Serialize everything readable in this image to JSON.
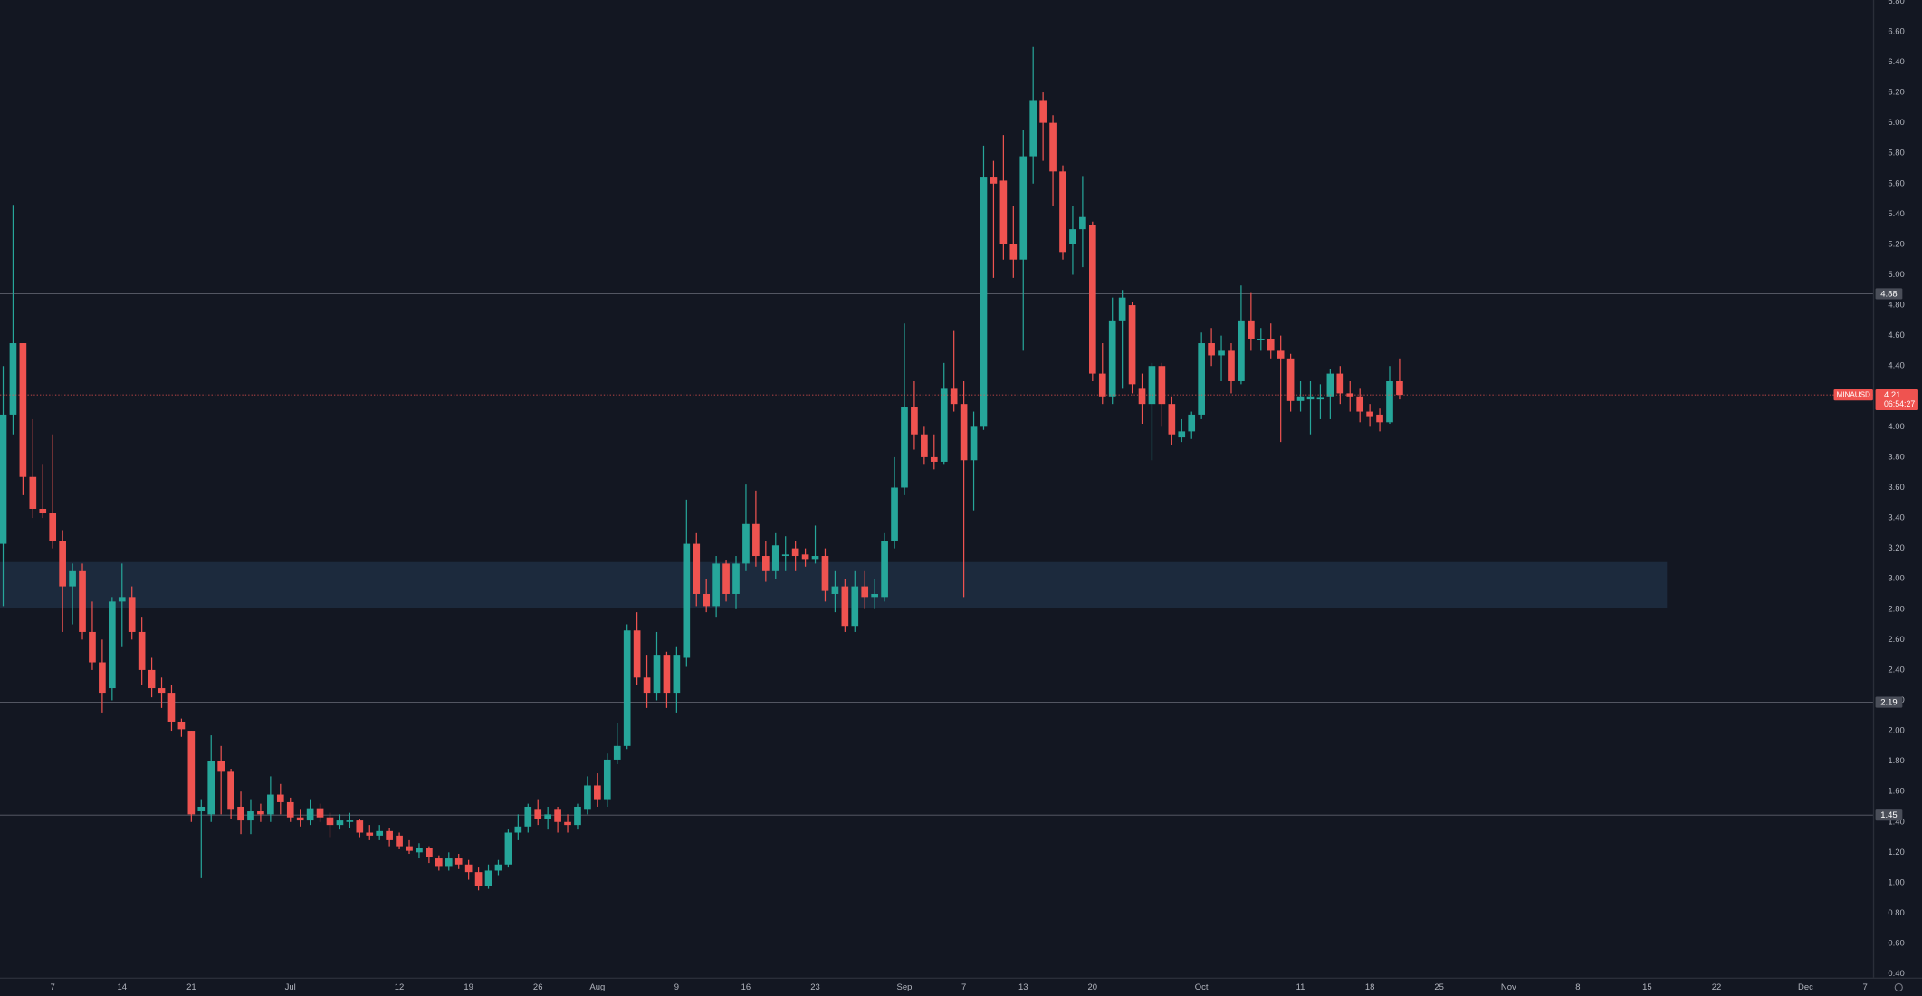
{
  "chart_data": {
    "type": "candlestick",
    "symbol": "MINAUSD",
    "up_color": "#26a69a",
    "down_color": "#ef5350",
    "background": "#131722",
    "x": [
      1,
      2,
      3,
      4,
      5,
      6,
      7,
      8,
      9,
      10,
      11,
      12,
      13,
      14,
      15,
      16,
      17,
      18,
      19,
      20,
      21,
      22,
      23,
      24,
      25,
      26,
      27,
      28,
      29,
      30,
      31,
      32,
      33,
      34,
      35,
      36,
      37,
      38,
      39,
      40,
      41,
      42,
      43,
      44,
      45,
      46,
      47,
      48,
      49,
      50,
      51,
      52,
      53,
      54,
      55,
      56,
      57,
      58,
      59,
      60,
      61,
      62,
      63,
      64,
      65,
      66,
      67,
      68,
      69,
      70,
      71,
      72,
      73,
      74,
      75,
      76,
      77,
      78,
      79,
      80,
      81,
      82,
      83,
      84,
      85,
      86,
      87,
      88,
      89,
      90,
      91,
      92,
      93,
      94,
      95,
      96,
      97,
      98,
      99,
      100,
      101,
      102,
      103,
      104,
      105,
      106,
      107,
      108,
      109,
      110,
      111,
      112,
      113,
      114,
      115,
      116,
      117,
      118,
      119,
      120,
      121,
      122,
      123,
      124,
      125,
      126,
      127,
      128,
      129,
      130,
      131,
      132,
      133,
      134,
      135,
      136,
      137,
      138,
      139,
      140,
      141,
      142
    ],
    "open": [
      3.23,
      4.08,
      4.55,
      3.67,
      3.46,
      3.43,
      3.25,
      2.95,
      3.05,
      2.65,
      2.45,
      2.28,
      2.85,
      2.88,
      2.65,
      2.4,
      2.28,
      2.25,
      2.06,
      2.0,
      1.47,
      1.45,
      1.8,
      1.73,
      1.5,
      1.41,
      1.47,
      1.45,
      1.58,
      1.53,
      1.43,
      1.41,
      1.49,
      1.43,
      1.38,
      1.4,
      1.41,
      1.33,
      1.31,
      1.34,
      1.31,
      1.24,
      1.2,
      1.23,
      1.16,
      1.11,
      1.16,
      1.12,
      1.07,
      0.98,
      1.08,
      1.12,
      1.33,
      1.37,
      1.48,
      1.42,
      1.48,
      1.4,
      1.38,
      1.48,
      1.64,
      1.55,
      1.81,
      1.9,
      2.66,
      2.35,
      2.25,
      2.5,
      2.25,
      2.48,
      3.23,
      2.9,
      2.82,
      3.1,
      2.9,
      3.1,
      3.36,
      3.15,
      3.05,
      3.15,
      3.2,
      3.16,
      3.13,
      3.15,
      2.9,
      2.95,
      2.69,
      2.95,
      2.88,
      2.88,
      3.25,
      3.6,
      4.13,
      3.95,
      3.8,
      3.77,
      4.25,
      4.15,
      3.78,
      4.0,
      5.64,
      5.62,
      5.2,
      5.1,
      5.78,
      6.15,
      6.0,
      5.68,
      5.2,
      5.3,
      5.33,
      4.35,
      4.2,
      4.7,
      4.8,
      4.25,
      4.15,
      4.4,
      4.15,
      3.93,
      3.97,
      4.08,
      4.55,
      4.47,
      4.5,
      4.3,
      4.7,
      4.57,
      4.58,
      4.5,
      4.45,
      4.17,
      4.18,
      4.18,
      4.2,
      4.35,
      4.22,
      4.2,
      4.1,
      4.08,
      4.03,
      4.3
    ],
    "high": [
      4.4,
      5.46,
      4.55,
      4.05,
      3.75,
      3.95,
      3.32,
      3.1,
      3.1,
      2.85,
      2.6,
      2.88,
      3.1,
      2.95,
      2.75,
      2.48,
      2.35,
      2.3,
      2.08,
      2.0,
      1.55,
      1.97,
      1.9,
      1.75,
      1.6,
      1.55,
      1.52,
      1.7,
      1.65,
      1.56,
      1.48,
      1.55,
      1.52,
      1.46,
      1.45,
      1.46,
      1.42,
      1.38,
      1.38,
      1.36,
      1.33,
      1.28,
      1.26,
      1.24,
      1.18,
      1.2,
      1.19,
      1.15,
      1.1,
      1.12,
      1.15,
      1.35,
      1.45,
      1.52,
      1.55,
      1.5,
      1.5,
      1.45,
      1.52,
      1.7,
      1.72,
      1.85,
      2.05,
      2.7,
      2.78,
      2.5,
      2.65,
      2.52,
      2.55,
      3.52,
      3.3,
      3.0,
      3.15,
      3.12,
      3.15,
      3.62,
      3.58,
      3.25,
      3.3,
      3.28,
      3.25,
      3.2,
      3.35,
      3.2,
      3.05,
      3.0,
      3.05,
      3.05,
      3.0,
      3.3,
      3.8,
      4.68,
      4.3,
      4.0,
      3.95,
      4.42,
      4.63,
      4.3,
      4.1,
      5.85,
      5.75,
      5.92,
      5.45,
      5.95,
      6.5,
      6.2,
      6.05,
      5.72,
      5.45,
      5.65,
      5.35,
      4.55,
      4.85,
      4.9,
      4.82,
      4.35,
      4.42,
      4.42,
      4.2,
      4.05,
      4.1,
      4.62,
      4.65,
      4.6,
      4.55,
      4.93,
      4.88,
      4.65,
      4.68,
      4.6,
      4.48,
      4.3,
      4.3,
      4.28,
      4.38,
      4.4,
      4.3,
      4.25,
      4.15,
      4.12,
      4.4,
      4.45
    ],
    "low": [
      2.82,
      3.95,
      3.55,
      3.4,
      3.4,
      3.2,
      2.65,
      2.7,
      2.6,
      2.4,
      2.12,
      2.2,
      2.55,
      2.6,
      2.3,
      2.22,
      2.15,
      2.0,
      1.96,
      1.4,
      1.03,
      1.4,
      1.45,
      1.42,
      1.32,
      1.32,
      1.4,
      1.4,
      1.45,
      1.4,
      1.37,
      1.38,
      1.4,
      1.3,
      1.35,
      1.36,
      1.3,
      1.28,
      1.28,
      1.24,
      1.22,
      1.19,
      1.16,
      1.13,
      1.08,
      1.08,
      1.09,
      1.02,
      0.95,
      0.96,
      1.05,
      1.1,
      1.28,
      1.33,
      1.38,
      1.35,
      1.33,
      1.33,
      1.35,
      1.45,
      1.5,
      1.5,
      1.78,
      1.88,
      2.3,
      2.15,
      2.2,
      2.15,
      2.12,
      2.42,
      2.82,
      2.78,
      2.75,
      2.85,
      2.8,
      3.05,
      3.08,
      2.98,
      3.0,
      3.05,
      3.05,
      3.08,
      3.1,
      2.85,
      2.78,
      2.65,
      2.65,
      2.8,
      2.8,
      2.85,
      3.2,
      3.55,
      3.85,
      3.75,
      3.72,
      3.75,
      4.1,
      2.88,
      3.45,
      3.98,
      4.98,
      5.1,
      4.98,
      4.5,
      5.6,
      5.75,
      5.45,
      5.1,
      5.0,
      5.05,
      4.3,
      4.15,
      4.15,
      4.25,
      4.22,
      4.02,
      3.78,
      4.0,
      3.88,
      3.9,
      3.92,
      4.05,
      4.4,
      4.3,
      4.22,
      4.28,
      4.5,
      4.5,
      4.45,
      3.9,
      4.1,
      4.1,
      3.95,
      4.05,
      4.05,
      4.15,
      4.1,
      4.03,
      4.0,
      3.97,
      4.02,
      4.18
    ],
    "close": [
      4.08,
      4.55,
      3.67,
      3.46,
      3.43,
      3.25,
      2.95,
      3.05,
      2.65,
      2.45,
      2.25,
      2.85,
      2.88,
      2.65,
      2.4,
      2.28,
      2.25,
      2.06,
      2.01,
      1.45,
      1.5,
      1.8,
      1.73,
      1.48,
      1.41,
      1.47,
      1.45,
      1.58,
      1.53,
      1.43,
      1.41,
      1.49,
      1.43,
      1.38,
      1.41,
      1.41,
      1.33,
      1.31,
      1.34,
      1.28,
      1.24,
      1.21,
      1.23,
      1.17,
      1.11,
      1.16,
      1.12,
      1.07,
      0.98,
      1.08,
      1.12,
      1.33,
      1.37,
      1.5,
      1.42,
      1.45,
      1.4,
      1.38,
      1.5,
      1.64,
      1.55,
      1.81,
      1.9,
      2.66,
      2.35,
      2.25,
      2.5,
      2.25,
      2.5,
      3.23,
      2.9,
      2.82,
      3.1,
      2.9,
      3.1,
      3.36,
      3.15,
      3.05,
      3.22,
      3.16,
      3.15,
      3.13,
      3.15,
      2.92,
      2.95,
      2.69,
      2.95,
      2.88,
      2.9,
      3.25,
      3.6,
      4.13,
      3.95,
      3.8,
      3.77,
      4.25,
      4.15,
      3.78,
      4.0,
      5.64,
      5.6,
      5.2,
      5.1,
      5.78,
      6.15,
      6.0,
      5.68,
      5.15,
      5.3,
      5.38,
      4.35,
      4.2,
      4.7,
      4.85,
      4.28,
      4.15,
      4.4,
      4.15,
      3.95,
      3.97,
      4.08,
      4.55,
      4.47,
      4.5,
      4.3,
      4.7,
      4.58,
      4.58,
      4.5,
      4.45,
      4.17,
      4.2,
      4.2,
      4.19,
      4.35,
      4.22,
      4.2,
      4.1,
      4.07,
      4.03,
      4.3,
      4.21
    ],
    "xlim": [
      0.68,
      189.8
    ],
    "xticks": [
      {
        "value": 6,
        "label": "7"
      },
      {
        "value": 13,
        "label": "14"
      },
      {
        "value": 20,
        "label": "21"
      },
      {
        "value": 30,
        "label": "Jul"
      },
      {
        "value": 41,
        "label": "12"
      },
      {
        "value": 48,
        "label": "19"
      },
      {
        "value": 55,
        "label": "26"
      },
      {
        "value": 61,
        "label": "Aug"
      },
      {
        "value": 69,
        "label": "9"
      },
      {
        "value": 76,
        "label": "16"
      },
      {
        "value": 83,
        "label": "23"
      },
      {
        "value": 92,
        "label": "Sep"
      },
      {
        "value": 98,
        "label": "7"
      },
      {
        "value": 104,
        "label": "13"
      },
      {
        "value": 111,
        "label": "20"
      },
      {
        "value": 122,
        "label": "Oct"
      },
      {
        "value": 132,
        "label": "11"
      },
      {
        "value": 139,
        "label": "18"
      },
      {
        "value": 146,
        "label": "25"
      },
      {
        "value": 153,
        "label": "Nov"
      },
      {
        "value": 160,
        "label": "8"
      },
      {
        "value": 167,
        "label": "15"
      },
      {
        "value": 174,
        "label": "22"
      },
      {
        "value": 183,
        "label": "Dec"
      },
      {
        "value": 189,
        "label": "7"
      }
    ],
    "ylim": [
      0.4,
      6.8
    ],
    "yticks": [
      {
        "value": 0.4,
        "label": "0.40"
      },
      {
        "value": 0.6,
        "label": "0.60"
      },
      {
        "value": 0.8,
        "label": "0.80"
      },
      {
        "value": 1,
        "label": "1.00"
      },
      {
        "value": 1.2,
        "label": "1.20"
      },
      {
        "value": 1.4,
        "label": "1.40"
      },
      {
        "value": 1.6,
        "label": "1.60"
      },
      {
        "value": 1.8,
        "label": "1.80"
      },
      {
        "value": 2,
        "label": "2.00"
      },
      {
        "value": 2.2,
        "label": "2.20"
      },
      {
        "value": 2.4,
        "label": "2.40"
      },
      {
        "value": 2.6,
        "label": "2.60"
      },
      {
        "value": 2.8,
        "label": "2.80"
      },
      {
        "value": 3,
        "label": "3.00"
      },
      {
        "value": 3.2,
        "label": "3.20"
      },
      {
        "value": 3.4,
        "label": "3.40"
      },
      {
        "value": 3.6,
        "label": "3.60"
      },
      {
        "value": 3.8,
        "label": "3.80"
      },
      {
        "value": 4,
        "label": "4.00"
      },
      {
        "value": 4.2,
        "label": "4.20"
      },
      {
        "value": 4.4,
        "label": "4.40"
      },
      {
        "value": 4.6,
        "label": "4.60"
      },
      {
        "value": 4.8,
        "label": "4.80"
      },
      {
        "value": 5,
        "label": "5.00"
      },
      {
        "value": 5.2,
        "label": "5.20"
      },
      {
        "value": 5.4,
        "label": "5.40"
      },
      {
        "value": 5.6,
        "label": "5.60"
      },
      {
        "value": 5.8,
        "label": "5.80"
      },
      {
        "value": 6,
        "label": "6.00"
      },
      {
        "value": 6.2,
        "label": "6.20"
      },
      {
        "value": 6.4,
        "label": "6.40"
      },
      {
        "value": 6.6,
        "label": "6.60"
      },
      {
        "value": 6.8,
        "label": "6.80"
      }
    ],
    "levels": [
      4.88,
      2.19,
      1.45
    ],
    "zone": {
      "low": 2.81,
      "high": 3.11,
      "x_end": 169
    },
    "last_price": 4.21,
    "countdown": "06:54:27"
  }
}
